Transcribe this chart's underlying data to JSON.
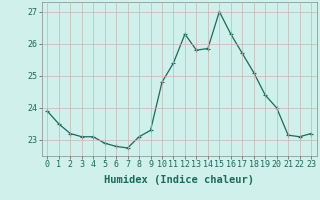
{
  "x": [
    0,
    1,
    2,
    3,
    4,
    5,
    6,
    7,
    8,
    9,
    10,
    11,
    12,
    13,
    14,
    15,
    16,
    17,
    18,
    19,
    20,
    21,
    22,
    23
  ],
  "y": [
    23.9,
    23.5,
    23.2,
    23.1,
    23.1,
    22.9,
    22.8,
    22.75,
    23.1,
    23.3,
    24.8,
    25.4,
    26.3,
    25.8,
    25.85,
    27.0,
    26.3,
    25.7,
    25.1,
    24.4,
    24.0,
    23.15,
    23.1,
    23.2
  ],
  "line_color": "#1a6b5a",
  "marker": "+",
  "marker_size": 3,
  "marker_linewidth": 0.8,
  "bg_color": "#cff0eb",
  "grid_color": "#c8b4b4",
  "xlabel": "Humidex (Indice chaleur)",
  "xlabel_fontsize": 7.5,
  "tick_fontsize": 6,
  "ylim": [
    22.5,
    27.3
  ],
  "yticks": [
    23,
    24,
    25,
    26,
    27
  ],
  "xlim": [
    -0.5,
    23.5
  ],
  "line_width": 0.9
}
